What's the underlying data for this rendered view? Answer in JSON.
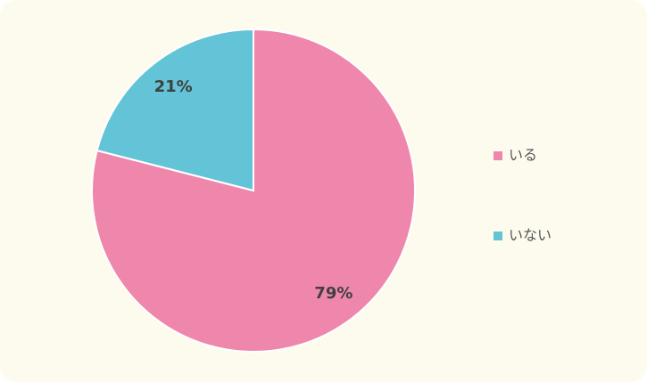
{
  "chart_data": {
    "type": "pie",
    "categories": [
      "いる",
      "いない"
    ],
    "values": [
      79,
      21
    ],
    "value_labels": [
      "79%",
      "21%"
    ],
    "colors": [
      "#ef87ad",
      "#62c4d6"
    ]
  }
}
